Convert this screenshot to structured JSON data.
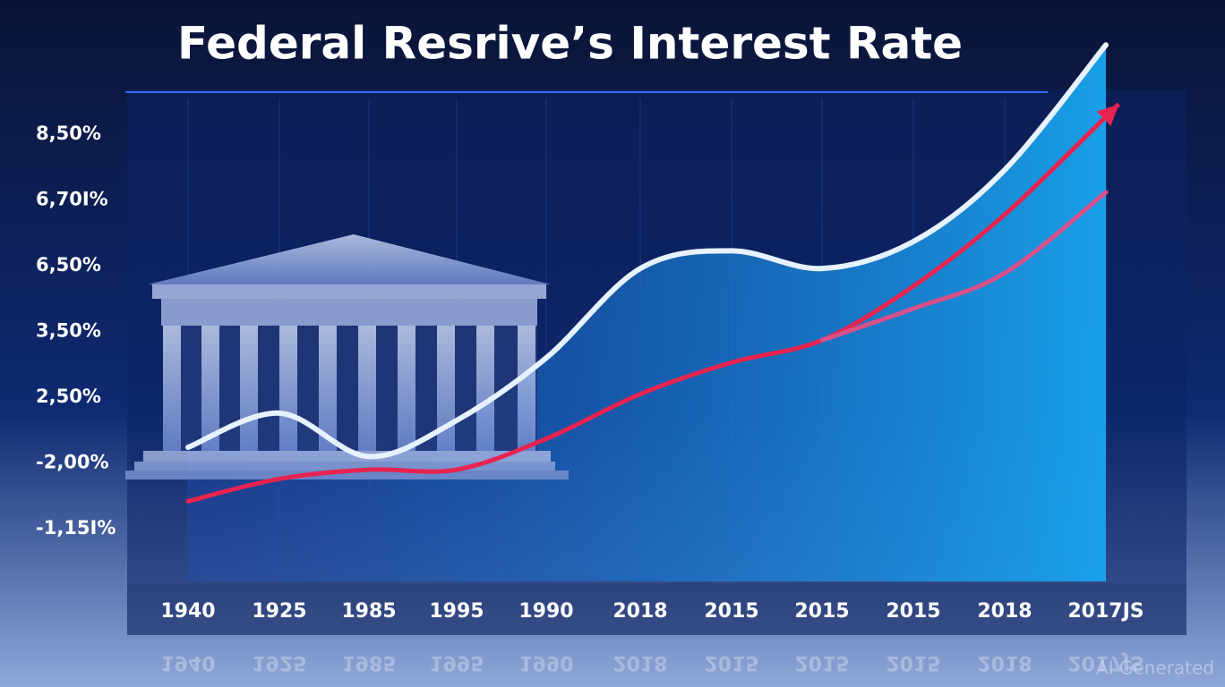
{
  "chart_data": {
    "type": "line",
    "title": "Federal Resrive’s Interest Rate",
    "y_labels": [
      "8,50%",
      "6,70I%",
      "6,50%",
      "3,50%",
      "2,50%",
      "-2,00%",
      "-1,15I%"
    ],
    "categories": [
      "1940",
      "1925",
      "1985",
      "1995",
      "1990",
      "2018",
      "2015",
      "2015",
      "2015",
      "2018",
      "2017JS"
    ],
    "ylim": [
      -0.8,
      7.5
    ],
    "series": [
      {
        "color": "#e6f2ff",
        "values": [
          1.24,
          1.76,
          1.1,
          1.65,
          2.6,
          3.96,
          4.23,
          3.96,
          4.37,
          5.46,
          7.36
        ]
      },
      {
        "color": "#e8234f",
        "values": [
          0.42,
          0.76,
          0.9,
          0.9,
          1.37,
          2.05,
          2.53,
          2.87,
          3.69,
          4.78,
          6.27
        ]
      },
      {
        "color": "#d9508a",
        "values": [
          null,
          null,
          null,
          null,
          null,
          null,
          null,
          2.87,
          3.35,
          3.89,
          5.12
        ]
      }
    ],
    "watermark": "AI Generated"
  }
}
